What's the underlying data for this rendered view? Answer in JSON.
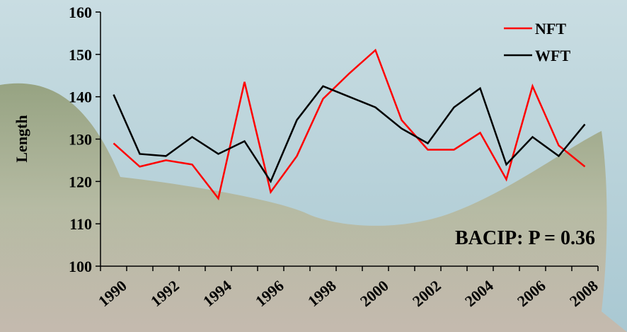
{
  "chart_data": {
    "type": "line",
    "y_label": "Length",
    "annotation": "BACIP: P = 0.36",
    "categories": [
      "1990",
      null,
      "1992",
      null,
      "1994",
      null,
      "1996",
      null,
      "1998",
      null,
      "2000",
      null,
      "2002",
      null,
      "2004",
      null,
      "2006",
      null,
      "2008"
    ],
    "series": [
      {
        "name": "NFT",
        "color": "#ff0000",
        "values": [
          129,
          123.5,
          125,
          124,
          116,
          143.5,
          117.5,
          126,
          139.5,
          145.5,
          151,
          134.5,
          127.5,
          127.5,
          131.5,
          120.5,
          142.5,
          128.5,
          123.5
        ]
      },
      {
        "name": "WFT",
        "color": "#000000",
        "values": [
          140.5,
          126.5,
          126,
          130.5,
          126.5,
          129.5,
          120,
          134.5,
          142.5,
          140,
          137.5,
          132.5,
          129,
          137.5,
          142,
          124,
          130.5,
          126,
          133.5
        ]
      }
    ],
    "ylim": [
      100,
      160
    ],
    "yticks": [
      100,
      110,
      120,
      130,
      140,
      150,
      160
    ],
    "legend": "top-right"
  }
}
